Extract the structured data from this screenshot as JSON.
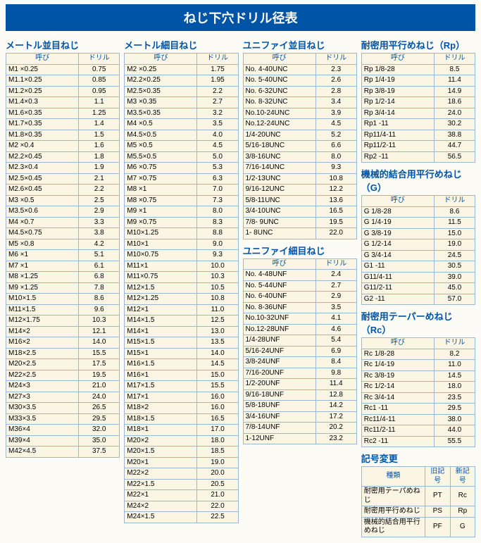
{
  "title": "ねじ下穴ドリル径表",
  "headers": {
    "size": "呼び",
    "drill": "ドリル",
    "kind": "種類",
    "old": "旧記号",
    "new": "新記号"
  },
  "sections": {
    "metric_coarse": {
      "title": "メートル並目ねじ",
      "rows": [
        [
          "M1  ×0.25",
          "0.75"
        ],
        [
          "M1.1×0.25",
          "0.85"
        ],
        [
          "M1.2×0.25",
          "0.95"
        ],
        [
          "M1.4×0.3",
          "1.1"
        ],
        [
          "M1.6×0.35",
          "1.25"
        ],
        [
          "M1.7×0.35",
          "1.4"
        ],
        [
          "M1.8×0.35",
          "1.5"
        ],
        [
          "M2  ×0.4",
          "1.6"
        ],
        [
          "M2.2×0.45",
          "1.8"
        ],
        [
          "M2.3×0.4",
          "1.9"
        ],
        [
          "M2.5×0.45",
          "2.1"
        ],
        [
          "M2.6×0.45",
          "2.2"
        ],
        [
          "M3  ×0.5",
          "2.5"
        ],
        [
          "M3.5×0.6",
          "2.9"
        ],
        [
          "M4  ×0.7",
          "3.3"
        ],
        [
          "M4.5×0.75",
          "3.8"
        ],
        [
          "M5  ×0.8",
          "4.2"
        ],
        [
          "M6  ×1",
          "5.1"
        ],
        [
          "M7  ×1",
          "6.1"
        ],
        [
          "M8  ×1.25",
          "6.8"
        ],
        [
          "M9  ×1.25",
          "7.8"
        ],
        [
          "M10×1.5",
          "8.6"
        ],
        [
          "M11×1.5",
          "9.6"
        ],
        [
          "M12×1.75",
          "10.3"
        ],
        [
          "M14×2",
          "12.1"
        ],
        [
          "M16×2",
          "14.0"
        ],
        [
          "M18×2.5",
          "15.5"
        ],
        [
          "M20×2.5",
          "17.5"
        ],
        [
          "M22×2.5",
          "19.5"
        ],
        [
          "M24×3",
          "21.0"
        ],
        [
          "M27×3",
          "24.0"
        ],
        [
          "M30×3.5",
          "26.5"
        ],
        [
          "M33×3.5",
          "29.5"
        ],
        [
          "M36×4",
          "32.0"
        ],
        [
          "M39×4",
          "35.0"
        ],
        [
          "M42×4.5",
          "37.5"
        ]
      ]
    },
    "metric_fine": {
      "title": "メートル細目ねじ",
      "rows": [
        [
          "M2  ×0.25",
          "1.75"
        ],
        [
          "M2.2×0.25",
          "1.95"
        ],
        [
          "M2.5×0.35",
          "2.2"
        ],
        [
          "M3  ×0.35",
          "2.7"
        ],
        [
          "M3.5×0.35",
          "3.2"
        ],
        [
          "M4  ×0.5",
          "3.5"
        ],
        [
          "M4.5×0.5",
          "4.0"
        ],
        [
          "M5  ×0.5",
          "4.5"
        ],
        [
          "M5.5×0.5",
          "5.0"
        ],
        [
          "M6  ×0.75",
          "5.3"
        ],
        [
          "M7  ×0.75",
          "6.3"
        ],
        [
          "M8  ×1",
          "7.0"
        ],
        [
          "M8  ×0.75",
          "7.3"
        ],
        [
          "M9  ×1",
          "8.0"
        ],
        [
          "M9  ×0.75",
          "8.3"
        ],
        [
          "M10×1.25",
          "8.8"
        ],
        [
          "M10×1",
          "9.0"
        ],
        [
          "M10×0.75",
          "9.3"
        ],
        [
          "M11×1",
          "10.0"
        ],
        [
          "M11×0.75",
          "10.3"
        ],
        [
          "M12×1.5",
          "10.5"
        ],
        [
          "M12×1.25",
          "10.8"
        ],
        [
          "M12×1",
          "11.0"
        ],
        [
          "M14×1.5",
          "12.5"
        ],
        [
          "M14×1",
          "13.0"
        ],
        [
          "M15×1.5",
          "13.5"
        ],
        [
          "M15×1",
          "14.0"
        ],
        [
          "M16×1.5",
          "14.5"
        ],
        [
          "M16×1",
          "15.0"
        ],
        [
          "M17×1.5",
          "15.5"
        ],
        [
          "M17×1",
          "16.0"
        ],
        [
          "M18×2",
          "16.0"
        ],
        [
          "M18×1.5",
          "16.5"
        ],
        [
          "M18×1",
          "17.0"
        ],
        [
          "M20×2",
          "18.0"
        ],
        [
          "M20×1.5",
          "18.5"
        ],
        [
          "M20×1",
          "19.0"
        ],
        [
          "M22×2",
          "20.0"
        ],
        [
          "M22×1.5",
          "20.5"
        ],
        [
          "M22×1",
          "21.0"
        ],
        [
          "M24×2",
          "22.0"
        ],
        [
          "M24×1.5",
          "22.5"
        ]
      ]
    },
    "unc": {
      "title": "ユニファイ並目ねじ",
      "rows": [
        [
          "No.  4-40UNC",
          "2.3"
        ],
        [
          "No.  5-40UNC",
          "2.6"
        ],
        [
          "No.  6-32UNC",
          "2.8"
        ],
        [
          "No.  8-32UNC",
          "3.4"
        ],
        [
          "No.10-24UNC",
          "3.9"
        ],
        [
          "No.12-24UNC",
          "4.5"
        ],
        [
          "1/4-20UNC",
          "5.2"
        ],
        [
          "5/16-18UNC",
          "6.6"
        ],
        [
          "3/8-16UNC",
          "8.0"
        ],
        [
          "7/16-14UNC",
          "9.3"
        ],
        [
          "1/2-13UNC",
          "10.8"
        ],
        [
          "9/16-12UNC",
          "12.2"
        ],
        [
          "5/8-11UNC",
          "13.6"
        ],
        [
          "3/4-10UNC",
          "16.5"
        ],
        [
          "7/8-  9UNC",
          "19.5"
        ],
        [
          "1-  8UNC",
          "22.0"
        ]
      ]
    },
    "unf": {
      "title": "ユニファイ細目ねじ",
      "rows": [
        [
          "No.  4-48UNF",
          "2.4"
        ],
        [
          "No.  5-44UNF",
          "2.7"
        ],
        [
          "No.  6-40UNF",
          "2.9"
        ],
        [
          "No.  8-36UNF",
          "3.5"
        ],
        [
          "No.10-32UNF",
          "4.1"
        ],
        [
          "No.12-28UNF",
          "4.6"
        ],
        [
          "1/4-28UNF",
          "5.4"
        ],
        [
          "5/16-24UNF",
          "6.9"
        ],
        [
          "3/8-24UNF",
          "8.4"
        ],
        [
          "7/16-20UNF",
          "9.8"
        ],
        [
          "1/2-20UNF",
          "11.4"
        ],
        [
          "9/16-18UNF",
          "12.8"
        ],
        [
          "5/8-18UNF",
          "14.2"
        ],
        [
          "3/4-16UNF",
          "17.2"
        ],
        [
          "7/8-14UNF",
          "20.2"
        ],
        [
          "1-12UNF",
          "23.2"
        ]
      ]
    },
    "rp": {
      "title": "耐密用平行めねじ（Rp）",
      "rows": [
        [
          "Rp  1/8-28",
          "8.5"
        ],
        [
          "Rp  1/4-19",
          "11.4"
        ],
        [
          "Rp  3/8-19",
          "14.9"
        ],
        [
          "Rp  1/2-14",
          "18.6"
        ],
        [
          "Rp  3/4-14",
          "24.0"
        ],
        [
          "Rp1    -11",
          "30.2"
        ],
        [
          "Rp11/4-11",
          "38.8"
        ],
        [
          "Rp11/2-11",
          "44.7"
        ],
        [
          "Rp2    -11",
          "56.5"
        ]
      ]
    },
    "g": {
      "title": "機械的結合用平行めねじ（G）",
      "rows": [
        [
          "G   1/8-28",
          "8.6"
        ],
        [
          "G   1/4-19",
          "11.5"
        ],
        [
          "G   3/8-19",
          "15.0"
        ],
        [
          "G   1/2-14",
          "19.0"
        ],
        [
          "G   3/4-14",
          "24.5"
        ],
        [
          "G1     -11",
          "30.5"
        ],
        [
          "G11/4-11",
          "39.0"
        ],
        [
          "G11/2-11",
          "45.0"
        ],
        [
          "G2     -11",
          "57.0"
        ]
      ]
    },
    "rc": {
      "title": "耐密用テーパーめねじ（Rc）",
      "rows": [
        [
          "Rc  1/8-28",
          "8.2"
        ],
        [
          "Rc  1/4-19",
          "11.0"
        ],
        [
          "Rc  3/8-19",
          "14.5"
        ],
        [
          "Rc  1/2-14",
          "18.0"
        ],
        [
          "Rc  3/4-14",
          "23.5"
        ],
        [
          "Rc1    -11",
          "29.5"
        ],
        [
          "Rc11/4-11",
          "38.0"
        ],
        [
          "Rc11/2-11",
          "44.0"
        ],
        [
          "Rc2    -11",
          "55.5"
        ]
      ]
    },
    "change": {
      "title": "記号変更",
      "rows": [
        [
          "耐密用テーパめねじ",
          "PT",
          "Rc"
        ],
        [
          "耐密用平行めねじ",
          "PS",
          "Rp"
        ],
        [
          "機械的結合用平行めねじ",
          "PF",
          "G"
        ]
      ]
    }
  }
}
